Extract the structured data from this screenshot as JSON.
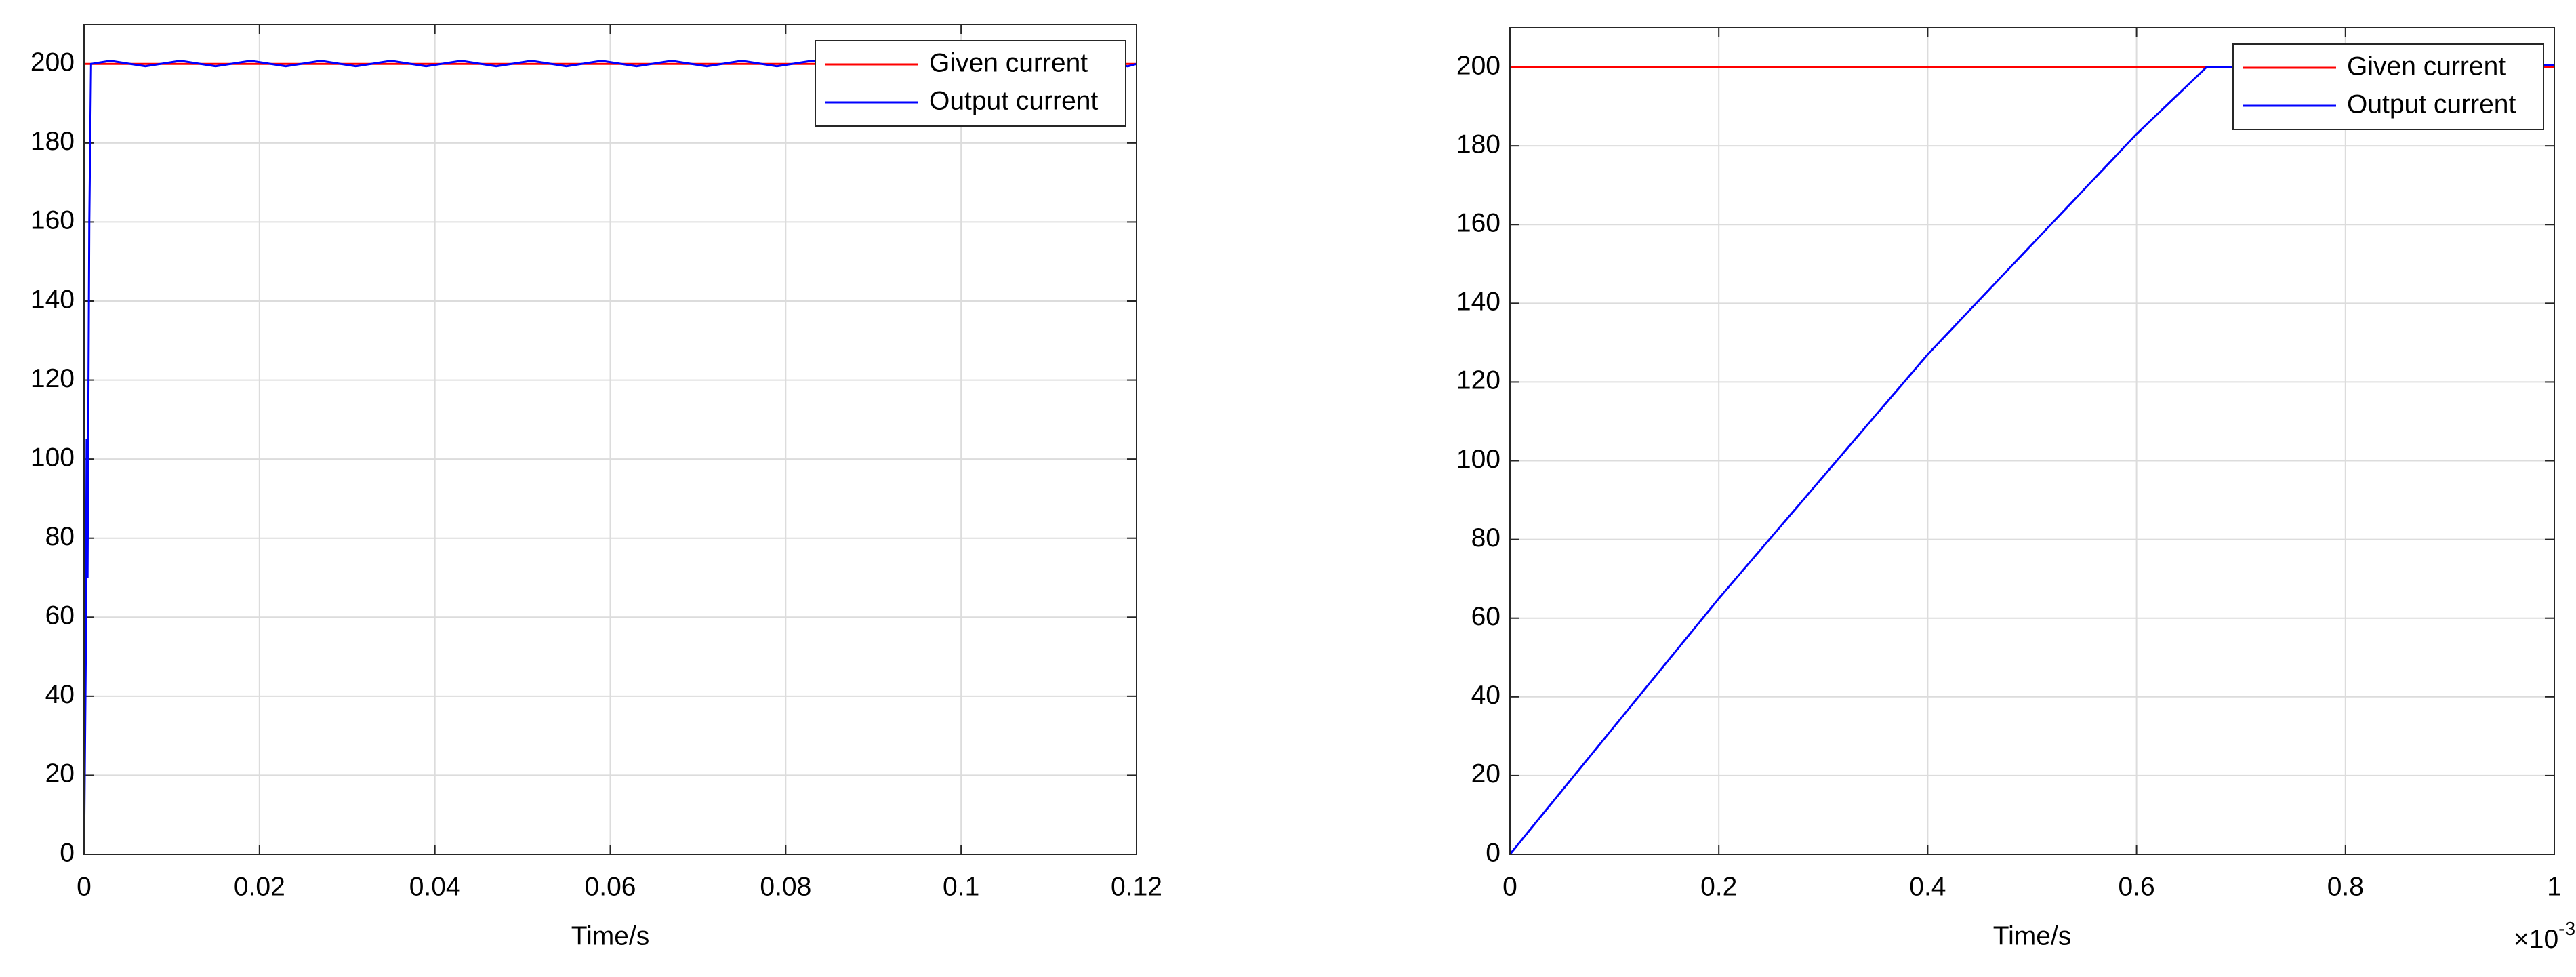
{
  "chart_data": [
    {
      "type": "line",
      "x_label": "Time/s",
      "xlim": [
        0,
        0.12
      ],
      "xticks": [
        0,
        0.02,
        0.04,
        0.06,
        0.08,
        0.1,
        0.12
      ],
      "ylim": [
        0,
        210
      ],
      "yticks": [
        0,
        20,
        40,
        60,
        80,
        100,
        120,
        140,
        160,
        180,
        200
      ],
      "grid": true,
      "legend": "northeast",
      "series": [
        {
          "name": "Given current",
          "color": "#ff0000",
          "x": [
            0,
            0.12
          ],
          "values": [
            200,
            200
          ]
        },
        {
          "name": "Output current",
          "color": "#0000ff",
          "x": [
            0,
            0.0002,
            0.0003,
            0.0004,
            0.0006,
            0.0008,
            0.003,
            0.007,
            0.011,
            0.015,
            0.019,
            0.023,
            0.027,
            0.031,
            0.035,
            0.039,
            0.043,
            0.047,
            0.051,
            0.055,
            0.059,
            0.063,
            0.067,
            0.071,
            0.075,
            0.079,
            0.083,
            0.087,
            0.091,
            0.095,
            0.099,
            0.103,
            0.107,
            0.111,
            0.115,
            0.119,
            0.12
          ],
          "values": [
            0,
            50,
            105,
            70,
            160,
            200,
            200.8,
            199.4,
            200.8,
            199.4,
            200.8,
            199.4,
            200.8,
            199.4,
            200.8,
            199.4,
            200.8,
            199.4,
            200.8,
            199.4,
            200.8,
            199.4,
            200.8,
            199.4,
            200.8,
            199.4,
            200.8,
            199.4,
            200.8,
            199.4,
            200.8,
            199.4,
            200.8,
            199.4,
            200.8,
            199.4,
            200
          ]
        }
      ]
    },
    {
      "type": "line",
      "x_label": "Time/s",
      "x_multiplier": {
        "base": "×10",
        "exponent": "-3"
      },
      "xlim": [
        0,
        1
      ],
      "xticks": [
        0,
        0.2,
        0.4,
        0.6,
        0.8,
        1
      ],
      "ylim": [
        0,
        210
      ],
      "yticks": [
        0,
        20,
        40,
        60,
        80,
        100,
        120,
        140,
        160,
        180,
        200
      ],
      "grid": true,
      "legend": "northeast",
      "series": [
        {
          "name": "Given current",
          "color": "#ff0000",
          "x": [
            0,
            1
          ],
          "values": [
            200,
            200
          ]
        },
        {
          "name": "Output current",
          "color": "#0000ff",
          "x": [
            0,
            0.1,
            0.2,
            0.3,
            0.4,
            0.5,
            0.6,
            0.667,
            0.8,
            1
          ],
          "values": [
            0,
            32.5,
            65,
            96,
            127,
            155,
            183,
            200,
            200.2,
            200.5
          ]
        }
      ]
    }
  ]
}
